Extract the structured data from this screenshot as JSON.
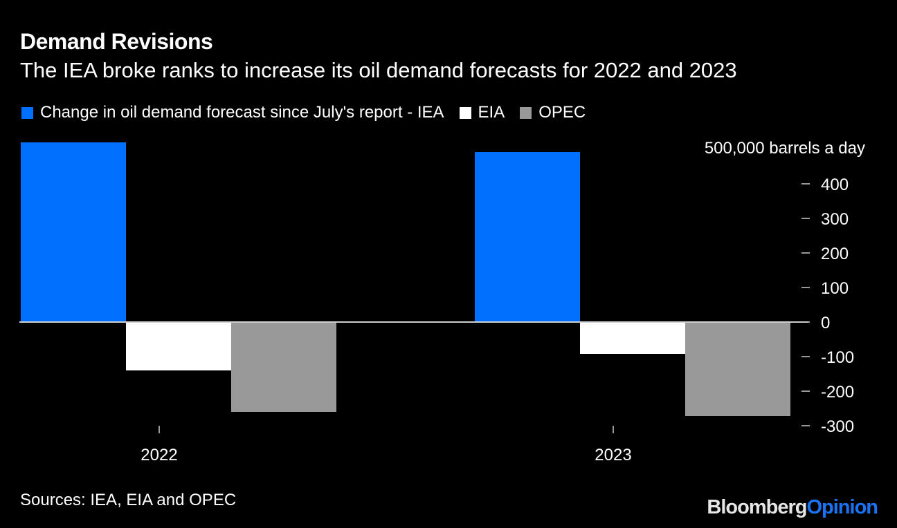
{
  "header": {
    "title": "Demand Revisions",
    "subtitle": "The IEA broke ranks to increase its oil demand forecasts for 2022 and 2023"
  },
  "legend": [
    {
      "label": "Change in oil demand forecast since July's report - IEA",
      "color": "#0070ff"
    },
    {
      "label": "EIA",
      "color": "#ffffff"
    },
    {
      "label": "OPEC",
      "color": "#999999"
    }
  ],
  "footer": {
    "source": "Sources: IEA, EIA and OPEC",
    "logo_bloomberg": "Bloomberg",
    "logo_opinion": "Opinion"
  },
  "chart_data": {
    "type": "bar",
    "title": "Demand Revisions",
    "subtitle": "The IEA broke ranks to increase its oil demand forecasts for 2022 and 2023",
    "categories": [
      "2022",
      "2023"
    ],
    "series": [
      {
        "name": "Change in oil demand forecast since July's report - IEA",
        "color": "#0070ff",
        "values": [
          520,
          492
        ]
      },
      {
        "name": "EIA",
        "color": "#ffffff",
        "values": [
          -140,
          -92
        ]
      },
      {
        "name": "OPEC",
        "color": "#999999",
        "values": [
          -260,
          -272
        ]
      }
    ],
    "ylabel": "",
    "unit_label": "500,000 barrels a day",
    "yticks": [
      400,
      300,
      200,
      100,
      0,
      -100,
      -200,
      -300
    ],
    "ylim": [
      -300,
      520
    ],
    "y_axis_side": "right",
    "grid": false,
    "legend_position": "top-left"
  }
}
